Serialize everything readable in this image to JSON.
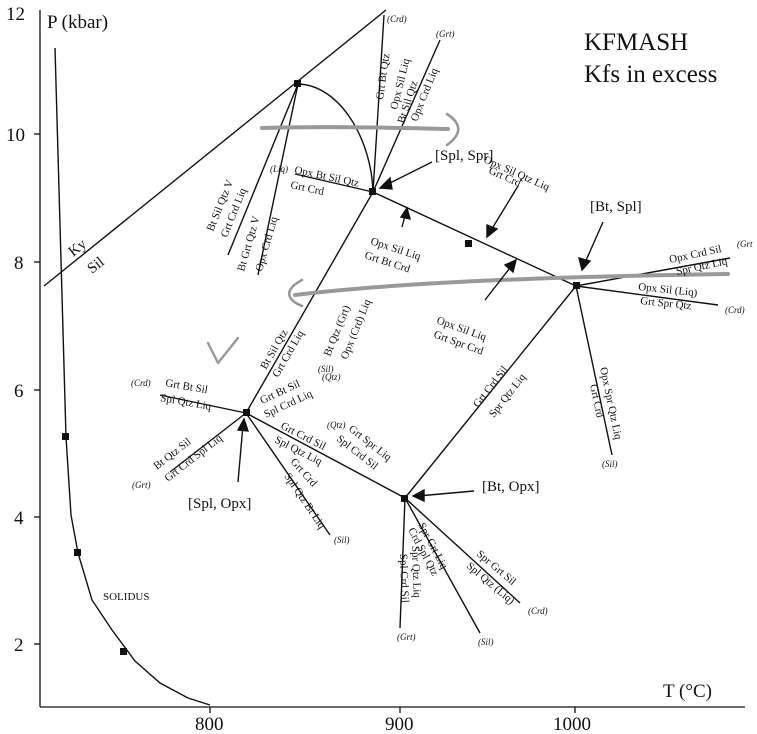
{
  "title_lines": [
    "KFMASH",
    "Kfs in excess"
  ],
  "axes": {
    "y_label": "P (kbar)",
    "x_label": "T (°C)",
    "y_ticks": [
      "12",
      "10",
      "8",
      "6",
      "4",
      "2"
    ],
    "x_ticks": [
      "800",
      "900",
      "1000"
    ]
  },
  "field_labels": {
    "ky": "Ky",
    "sil": "Sil",
    "solidus": "SOLIDUS"
  },
  "invariant_points": {
    "spl_spr": "[Spl, Spr]",
    "bt_spl": "[Bt, Spl]",
    "spl_opx": "[Spl, Opx]",
    "bt_opx": "[Bt, Opx]"
  },
  "reaction_labels": {
    "crd_top": "(Crd)",
    "grt_top": "(Grt)",
    "grt_bt_qtz": "Grt Bt Qtz",
    "opx_sil_liq": "Opx Sil Liq",
    "bt_sil_qtz": "Bt Sil Qtz",
    "opx_crd_liq": "Opx Crd Liq",
    "liq_tag": "(Liq)",
    "opx_bt_sil_qtz": "Opx Bt Sil Qtz",
    "grt_crd": "Grt Crd",
    "bt_sil_qtz_v": "Bt Sil Qtz V",
    "grt_crd_liq": "Grt Crd Liq",
    "bt_grt_qtz_v": "Bt Grt Qtz V",
    "opx_crd_liq_2": "Opx Crd Liq",
    "opx_sil_qtz_liq": "Opx Sil Qtz Liq",
    "grt_crd_2": "Grt Crd",
    "opx_sil_liq_2": "Opx Sil Liq",
    "grt_bt_crd": "Grt Bt Crd",
    "opx_crd_sil": "Opx Crd Sil",
    "grt_cut": "(Grt",
    "spr_qtz_liq": "Spr Qtz Liq",
    "opx_sil_liq_tag": "Opx Sil (Liq)",
    "grt_spr_qtz": "Grt Spr Qtz",
    "crd_right": "(Crd)",
    "opx_sil_liq_3": "Opx Sil Liq",
    "grt_spr_crd": "Grt Spr Crd",
    "opx_spr_qtz_liq": "Opx Spr Qtz Liq",
    "grt_crd_3": "Grt Crd",
    "sil_tag": "(Sil)",
    "bt_sil_qtz_2": "Bt Sil Qtz",
    "grt_crd_liq_2": "Grt Crd Liq",
    "sil_small": "(Sil)",
    "bt_qtz_grt": "Bt Qtz (Grt)",
    "opx_crd_liq_3": "Opx (Crd) Liq",
    "crd_left": "(Crd)",
    "grt_bt_sil": "Grt Bt Sil",
    "spl_qtz_liq": "Spl Qtz Liq",
    "qtz_tag": "(Qtz)",
    "grt_bt_sil_2": "Grt Bt Sil",
    "spl_crd_liq": "Spl Crd Liq",
    "bt_qtz_sil": "Bt Qtz Sil",
    "grt_left": "(Grt)",
    "grt_crd_spl_liq": "Grt Crd Spl Liq",
    "grt_crd_sil": "Grt Crd Sil",
    "spl_qtz_liq_2": "Spl Qtz Liq",
    "grt_crd_4": "Grt Crd",
    "spl_qtz_bt_liq": "Spl Qtz Bt Liq",
    "sil_tag_2": "(Sil)",
    "grt_crd_sil_2": "Grt Crd Sil",
    "spr_qtz_liq_2": "Spr Qtz Liq",
    "qtz_tag_2": "(Qtz)",
    "grt_spr_liq": "Grt Spr Liq",
    "spl_crd_sil": "Spl Crd Sil",
    "spr_grt_sil": "Spr Grt Sil",
    "spl_qtz_liq_3": "Spl Qtz (Liq)",
    "crd_bottom": "(Crd)",
    "spr_grt_liq": "Spr Grt Liq",
    "crd_spl_qtz": "Crd Spl Qtz",
    "spr_qtz_liq_3": "Spr Qtz Liq",
    "spl_crd_sil_2": "Spl Crd Sil",
    "grt_bottom": "(Grt)",
    "sil_bottom": "(Sil)"
  }
}
